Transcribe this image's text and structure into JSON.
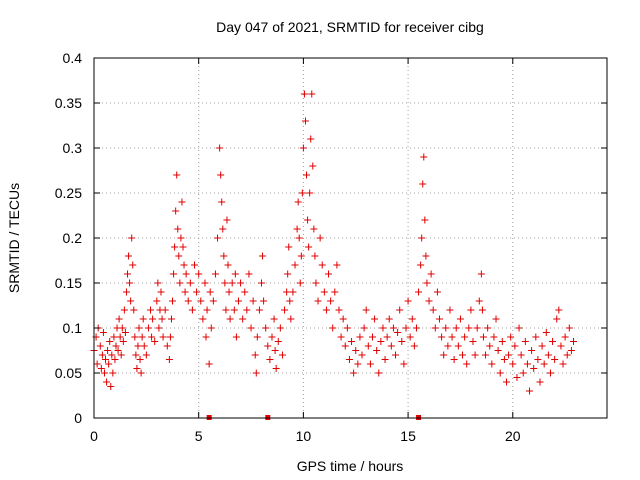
{
  "chart_data": {
    "type": "scatter",
    "title": "Day 047 of 2021, SRMTID for receiver cibg",
    "xlabel": "GPS time / hours",
    "ylabel": "SRMTID / TECUs",
    "xlim": [
      0,
      24.5
    ],
    "ylim": [
      0,
      0.4
    ],
    "xticks": [
      0,
      5,
      10,
      15,
      20
    ],
    "xtick_labels": [
      "0",
      "5",
      "10",
      "15",
      "20"
    ],
    "yticks": [
      0,
      0.05,
      0.1,
      0.15,
      0.2,
      0.25,
      0.3,
      0.35,
      0.4
    ],
    "ytick_labels": [
      "0",
      "0.05",
      "0.1",
      "0.15",
      "0.2",
      "0.25",
      "0.3",
      "0.35",
      "0.4"
    ],
    "grid": true,
    "marker": "plus",
    "color": "#e00000",
    "zero_markers_x": [
      5.5,
      8.3,
      15.5
    ],
    "series": [
      {
        "name": "SRMTID",
        "points": [
          [
            0.0,
            0.075
          ],
          [
            0.1,
            0.09
          ],
          [
            0.15,
            0.06
          ],
          [
            0.2,
            0.1
          ],
          [
            0.3,
            0.08
          ],
          [
            0.35,
            0.055
          ],
          [
            0.4,
            0.07
          ],
          [
            0.45,
            0.095
          ],
          [
            0.5,
            0.05
          ],
          [
            0.55,
            0.065
          ],
          [
            0.6,
            0.04
          ],
          [
            0.65,
            0.075
          ],
          [
            0.7,
            0.06
          ],
          [
            0.75,
            0.085
          ],
          [
            0.8,
            0.035
          ],
          [
            0.85,
            0.07
          ],
          [
            0.9,
            0.05
          ],
          [
            0.95,
            0.09
          ],
          [
            1.0,
            0.065
          ],
          [
            1.05,
            0.08
          ],
          [
            1.1,
            0.1
          ],
          [
            1.15,
            0.075
          ],
          [
            1.2,
            0.11
          ],
          [
            1.25,
            0.09
          ],
          [
            1.3,
            0.07
          ],
          [
            1.35,
            0.1
          ],
          [
            1.4,
            0.085
          ],
          [
            1.45,
            0.12
          ],
          [
            1.5,
            0.095
          ],
          [
            1.55,
            0.14
          ],
          [
            1.6,
            0.16
          ],
          [
            1.65,
            0.18
          ],
          [
            1.7,
            0.15
          ],
          [
            1.75,
            0.13
          ],
          [
            1.8,
            0.2
          ],
          [
            1.85,
            0.17
          ],
          [
            1.9,
            0.12
          ],
          [
            1.95,
            0.09
          ],
          [
            2.0,
            0.07
          ],
          [
            2.05,
            0.055
          ],
          [
            2.1,
            0.08
          ],
          [
            2.15,
            0.1
          ],
          [
            2.2,
            0.065
          ],
          [
            2.25,
            0.05
          ],
          [
            2.3,
            0.09
          ],
          [
            2.35,
            0.11
          ],
          [
            2.4,
            0.08
          ],
          [
            2.5,
            0.07
          ],
          [
            2.6,
            0.1
          ],
          [
            2.7,
            0.12
          ],
          [
            2.75,
            0.09
          ],
          [
            2.8,
            0.11
          ],
          [
            2.9,
            0.085
          ],
          [
            3.0,
            0.13
          ],
          [
            3.05,
            0.15
          ],
          [
            3.1,
            0.1
          ],
          [
            3.15,
            0.12
          ],
          [
            3.2,
            0.14
          ],
          [
            3.25,
            0.11
          ],
          [
            3.3,
            0.09
          ],
          [
            3.4,
            0.12
          ],
          [
            3.5,
            0.08
          ],
          [
            3.6,
            0.065
          ],
          [
            3.65,
            0.09
          ],
          [
            3.7,
            0.11
          ],
          [
            3.75,
            0.13
          ],
          [
            3.8,
            0.16
          ],
          [
            3.85,
            0.19
          ],
          [
            3.9,
            0.23
          ],
          [
            3.95,
            0.27
          ],
          [
            4.0,
            0.21
          ],
          [
            4.05,
            0.18
          ],
          [
            4.1,
            0.15
          ],
          [
            4.15,
            0.2
          ],
          [
            4.2,
            0.24
          ],
          [
            4.25,
            0.19
          ],
          [
            4.3,
            0.17
          ],
          [
            4.35,
            0.14
          ],
          [
            4.4,
            0.16
          ],
          [
            4.5,
            0.13
          ],
          [
            4.6,
            0.15
          ],
          [
            4.7,
            0.12
          ],
          [
            4.8,
            0.17
          ],
          [
            4.9,
            0.14
          ],
          [
            5.0,
            0.16
          ],
          [
            5.1,
            0.13
          ],
          [
            5.2,
            0.11
          ],
          [
            5.3,
            0.15
          ],
          [
            5.35,
            0.09
          ],
          [
            5.4,
            0.12
          ],
          [
            5.5,
            0.06
          ],
          [
            5.55,
            0.14
          ],
          [
            5.6,
            0.1
          ],
          [
            5.7,
            0.13
          ],
          [
            5.8,
            0.16
          ],
          [
            5.9,
            0.2
          ],
          [
            6.0,
            0.3
          ],
          [
            6.05,
            0.27
          ],
          [
            6.1,
            0.24
          ],
          [
            6.15,
            0.21
          ],
          [
            6.2,
            0.18
          ],
          [
            6.25,
            0.15
          ],
          [
            6.3,
            0.12
          ],
          [
            6.35,
            0.22
          ],
          [
            6.4,
            0.17
          ],
          [
            6.45,
            0.14
          ],
          [
            6.5,
            0.11
          ],
          [
            6.6,
            0.15
          ],
          [
            6.7,
            0.12
          ],
          [
            6.75,
            0.16
          ],
          [
            6.8,
            0.09
          ],
          [
            6.9,
            0.13
          ],
          [
            7.0,
            0.15
          ],
          [
            7.1,
            0.11
          ],
          [
            7.2,
            0.14
          ],
          [
            7.3,
            0.12
          ],
          [
            7.4,
            0.16
          ],
          [
            7.5,
            0.1
          ],
          [
            7.6,
            0.13
          ],
          [
            7.7,
            0.07
          ],
          [
            7.75,
            0.05
          ],
          [
            7.8,
            0.09
          ],
          [
            7.9,
            0.12
          ],
          [
            8.0,
            0.15
          ],
          [
            8.05,
            0.18
          ],
          [
            8.1,
            0.13
          ],
          [
            8.2,
            0.1
          ],
          [
            8.3,
            0.08
          ],
          [
            8.4,
            0.065
          ],
          [
            8.5,
            0.09
          ],
          [
            8.6,
            0.11
          ],
          [
            8.65,
            0.075
          ],
          [
            8.7,
            0.055
          ],
          [
            8.8,
            0.085
          ],
          [
            8.9,
            0.1
          ],
          [
            9.0,
            0.07
          ],
          [
            9.1,
            0.12
          ],
          [
            9.2,
            0.14
          ],
          [
            9.25,
            0.16
          ],
          [
            9.3,
            0.19
          ],
          [
            9.35,
            0.13
          ],
          [
            9.4,
            0.11
          ],
          [
            9.5,
            0.14
          ],
          [
            9.6,
            0.17
          ],
          [
            9.7,
            0.21
          ],
          [
            9.75,
            0.24
          ],
          [
            9.8,
            0.2
          ],
          [
            9.85,
            0.15
          ],
          [
            9.9,
            0.18
          ],
          [
            9.95,
            0.25
          ],
          [
            10.0,
            0.3
          ],
          [
            10.05,
            0.36
          ],
          [
            10.1,
            0.33
          ],
          [
            10.15,
            0.27
          ],
          [
            10.2,
            0.22
          ],
          [
            10.25,
            0.19
          ],
          [
            10.3,
            0.25
          ],
          [
            10.35,
            0.31
          ],
          [
            10.4,
            0.36
          ],
          [
            10.45,
            0.28
          ],
          [
            10.5,
            0.21
          ],
          [
            10.55,
            0.18
          ],
          [
            10.6,
            0.15
          ],
          [
            10.7,
            0.13
          ],
          [
            10.8,
            0.2
          ],
          [
            10.9,
            0.17
          ],
          [
            11.0,
            0.14
          ],
          [
            11.1,
            0.12
          ],
          [
            11.2,
            0.16
          ],
          [
            11.3,
            0.13
          ],
          [
            11.4,
            0.1
          ],
          [
            11.5,
            0.14
          ],
          [
            11.6,
            0.17
          ],
          [
            11.7,
            0.12
          ],
          [
            11.8,
            0.09
          ],
          [
            11.9,
            0.11
          ],
          [
            12.0,
            0.08
          ],
          [
            12.1,
            0.1
          ],
          [
            12.2,
            0.065
          ],
          [
            12.3,
            0.085
          ],
          [
            12.4,
            0.05
          ],
          [
            12.5,
            0.075
          ],
          [
            12.6,
            0.06
          ],
          [
            12.7,
            0.09
          ],
          [
            12.8,
            0.07
          ],
          [
            12.9,
            0.1
          ],
          [
            13.0,
            0.12
          ],
          [
            13.1,
            0.08
          ],
          [
            13.2,
            0.06
          ],
          [
            13.3,
            0.09
          ],
          [
            13.4,
            0.11
          ],
          [
            13.5,
            0.075
          ],
          [
            13.6,
            0.05
          ],
          [
            13.7,
            0.085
          ],
          [
            13.8,
            0.1
          ],
          [
            13.9,
            0.065
          ],
          [
            14.0,
            0.09
          ],
          [
            14.1,
            0.11
          ],
          [
            14.2,
            0.08
          ],
          [
            14.3,
            0.1
          ],
          [
            14.4,
            0.07
          ],
          [
            14.5,
            0.095
          ],
          [
            14.6,
            0.12
          ],
          [
            14.7,
            0.085
          ],
          [
            14.8,
            0.06
          ],
          [
            14.9,
            0.1
          ],
          [
            15.0,
            0.13
          ],
          [
            15.1,
            0.09
          ],
          [
            15.2,
            0.11
          ],
          [
            15.3,
            0.08
          ],
          [
            15.4,
            0.1
          ],
          [
            15.5,
            0.14
          ],
          [
            15.6,
            0.17
          ],
          [
            15.65,
            0.2
          ],
          [
            15.7,
            0.26
          ],
          [
            15.75,
            0.29
          ],
          [
            15.8,
            0.22
          ],
          [
            15.85,
            0.18
          ],
          [
            15.9,
            0.15
          ],
          [
            16.0,
            0.13
          ],
          [
            16.1,
            0.16
          ],
          [
            16.2,
            0.12
          ],
          [
            16.3,
            0.1
          ],
          [
            16.4,
            0.14
          ],
          [
            16.5,
            0.11
          ],
          [
            16.6,
            0.09
          ],
          [
            16.7,
            0.07
          ],
          [
            16.8,
            0.1
          ],
          [
            16.9,
            0.08
          ],
          [
            17.0,
            0.12
          ],
          [
            17.1,
            0.09
          ],
          [
            17.2,
            0.065
          ],
          [
            17.3,
            0.1
          ],
          [
            17.4,
            0.08
          ],
          [
            17.5,
            0.11
          ],
          [
            17.6,
            0.07
          ],
          [
            17.7,
            0.09
          ],
          [
            17.8,
            0.06
          ],
          [
            17.9,
            0.1
          ],
          [
            18.0,
            0.12
          ],
          [
            18.1,
            0.085
          ],
          [
            18.2,
            0.07
          ],
          [
            18.3,
            0.1
          ],
          [
            18.4,
            0.13
          ],
          [
            18.5,
            0.16
          ],
          [
            18.55,
            0.12
          ],
          [
            18.6,
            0.09
          ],
          [
            18.7,
            0.07
          ],
          [
            18.8,
            0.1
          ],
          [
            18.9,
            0.08
          ],
          [
            19.0,
            0.06
          ],
          [
            19.1,
            0.09
          ],
          [
            19.2,
            0.11
          ],
          [
            19.3,
            0.075
          ],
          [
            19.4,
            0.05
          ],
          [
            19.5,
            0.085
          ],
          [
            19.6,
            0.065
          ],
          [
            19.7,
            0.04
          ],
          [
            19.8,
            0.07
          ],
          [
            19.9,
            0.09
          ],
          [
            20.0,
            0.06
          ],
          [
            20.1,
            0.08
          ],
          [
            20.2,
            0.045
          ],
          [
            20.3,
            0.1
          ],
          [
            20.4,
            0.07
          ],
          [
            20.5,
            0.05
          ],
          [
            20.6,
            0.085
          ],
          [
            20.7,
            0.06
          ],
          [
            20.8,
            0.03
          ],
          [
            20.9,
            0.075
          ],
          [
            21.0,
            0.055
          ],
          [
            21.1,
            0.09
          ],
          [
            21.2,
            0.065
          ],
          [
            21.3,
            0.04
          ],
          [
            21.4,
            0.08
          ],
          [
            21.5,
            0.06
          ],
          [
            21.6,
            0.095
          ],
          [
            21.7,
            0.07
          ],
          [
            21.8,
            0.05
          ],
          [
            21.9,
            0.085
          ],
          [
            22.0,
            0.065
          ],
          [
            22.1,
            0.11
          ],
          [
            22.2,
            0.12
          ],
          [
            22.3,
            0.08
          ],
          [
            22.4,
            0.06
          ],
          [
            22.5,
            0.09
          ],
          [
            22.6,
            0.07
          ],
          [
            22.7,
            0.1
          ],
          [
            22.8,
            0.075
          ],
          [
            22.9,
            0.085
          ]
        ]
      }
    ]
  }
}
